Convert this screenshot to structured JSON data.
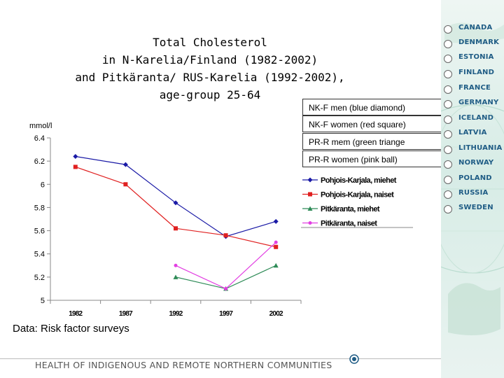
{
  "title": {
    "line1": "Total Cholesterol",
    "line2": "in N-Karelia/Finland (1982-2002)",
    "line3": "and Pitkäranta/ RUS-Karelia (1992-2002),",
    "line4": "age-group 25-64"
  },
  "notes": [
    "NK-F men (blue diamond)",
    "NK-F women (red square)",
    "PR-R mem (green triange",
    "PR-R women (pink ball)"
  ],
  "source": "Data: Risk factor surveys",
  "footer": "HEALTH OF INDIGENOUS AND REMOTE NORTHERN COMMUNITIES",
  "countries": [
    "CANADA",
    "DENMARK",
    "ESTONIA",
    "FINLAND",
    "FRANCE",
    "GERMANY",
    "ICELAND",
    "LATVIA",
    "LITHUANIA",
    "NORWAY",
    "POLAND",
    "RUSSIA",
    "SWEDEN"
  ],
  "colors": {
    "blue": "#1a1aa6",
    "red": "#e02020",
    "green": "#2e8b57",
    "pink": "#e23fe2"
  },
  "chart_data": {
    "type": "line",
    "title": "Total Cholesterol in N-Karelia/Finland (1982-2002) and Pitkäranta/ RUS-Karelia (1992-2002), age-group 25-64",
    "ylabel": "mmol/l",
    "xlabel": "",
    "categories": [
      "1982",
      "1987",
      "1992",
      "1997",
      "2002"
    ],
    "yticks": [
      "6.4",
      "6.2",
      "6",
      "5.8",
      "5.6",
      "5.4",
      "5.2",
      "5"
    ],
    "ylim": [
      5,
      6.4
    ],
    "series": [
      {
        "name": "Pohjois-Karjala, miehet",
        "marker": "diamond",
        "color": "#1a1aa6",
        "values": [
          6.24,
          6.17,
          5.84,
          5.55,
          5.68
        ]
      },
      {
        "name": "Pohjois-Karjala, naiset",
        "marker": "square",
        "color": "#e02020",
        "values": [
          6.15,
          6.0,
          5.62,
          5.56,
          5.46
        ]
      },
      {
        "name": "Pitkäranta, miehet",
        "marker": "triangle",
        "color": "#2e8b57",
        "values": [
          null,
          null,
          5.2,
          5.1,
          5.3
        ]
      },
      {
        "name": "Pitkäranta, naiset",
        "marker": "circle",
        "color": "#e23fe2",
        "values": [
          null,
          null,
          5.3,
          5.1,
          5.5
        ]
      }
    ]
  }
}
